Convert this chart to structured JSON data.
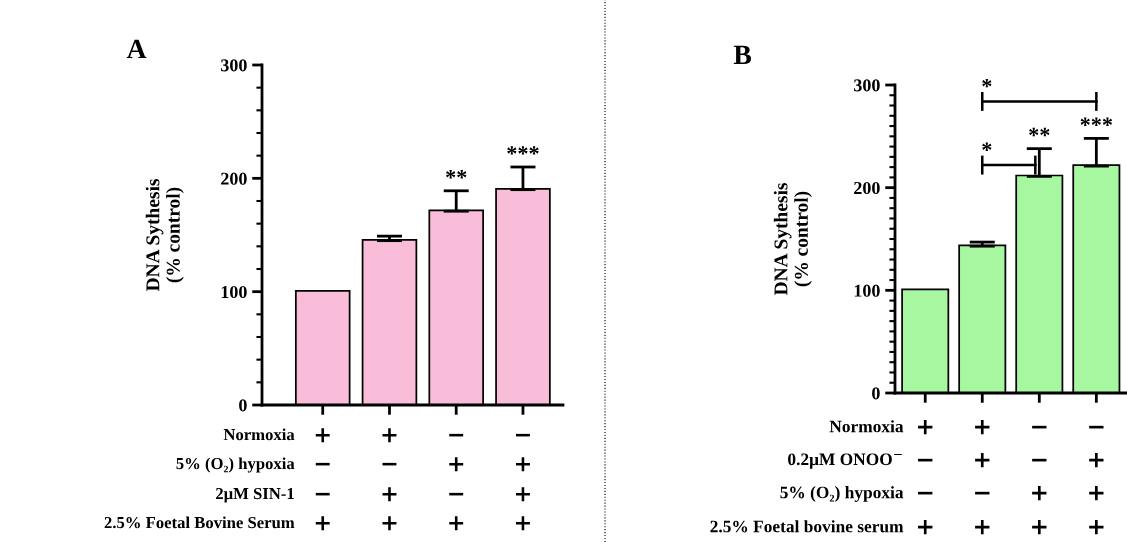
{
  "chart_data": [
    {
      "type": "bar",
      "title": "A",
      "ylabel": "DNA Sythesis\n(% control)",
      "categories": [
        null,
        null,
        null,
        null
      ],
      "color": "#f9bcd9",
      "values": [
        100,
        145,
        171,
        190
      ],
      "errors": [
        null,
        4,
        18,
        20
      ],
      "value_labels": [
        null,
        null,
        "**",
        "***"
      ],
      "ylim": [
        0,
        300
      ],
      "yticks": [
        0,
        100,
        200,
        300
      ],
      "grid": false,
      "legend": false,
      "annotations": [
        "Normoxia",
        "+",
        "+",
        "−",
        "−",
        "5% (O₂) hypoxia",
        "−",
        "−",
        "+",
        "+",
        "2μM SIN-1",
        "−",
        "+",
        "−",
        "+",
        "2.5% Foetal Bovine Serum",
        "+",
        "+",
        "+",
        "+"
      ]
    },
    {
      "type": "bar",
      "title": "B",
      "ylabel": "DNA Sythesis\n(% control)",
      "categories": [
        null,
        null,
        null,
        null
      ],
      "color": "#a6f7a0",
      "values": [
        100,
        143,
        211,
        221
      ],
      "errors": [
        null,
        4,
        27,
        27
      ],
      "value_labels": [
        null,
        null,
        "**",
        "***"
      ],
      "ylim": [
        0,
        300
      ],
      "yticks": [
        0,
        100,
        200,
        300
      ],
      "grid": false,
      "legend": false,
      "annotations": [
        "Normoxia",
        "+",
        "+",
        "−",
        "−",
        "0.2μM ONOO$^{−}$",
        "−",
        "+",
        "−",
        "+",
        "5% (O₂) hypoxia",
        "−",
        "−",
        "+",
        "+",
        "2.5% Foetal bovine serum",
        "+",
        "+",
        "+",
        "+",
        "*",
        "*"
      ]
    }
  ]
}
